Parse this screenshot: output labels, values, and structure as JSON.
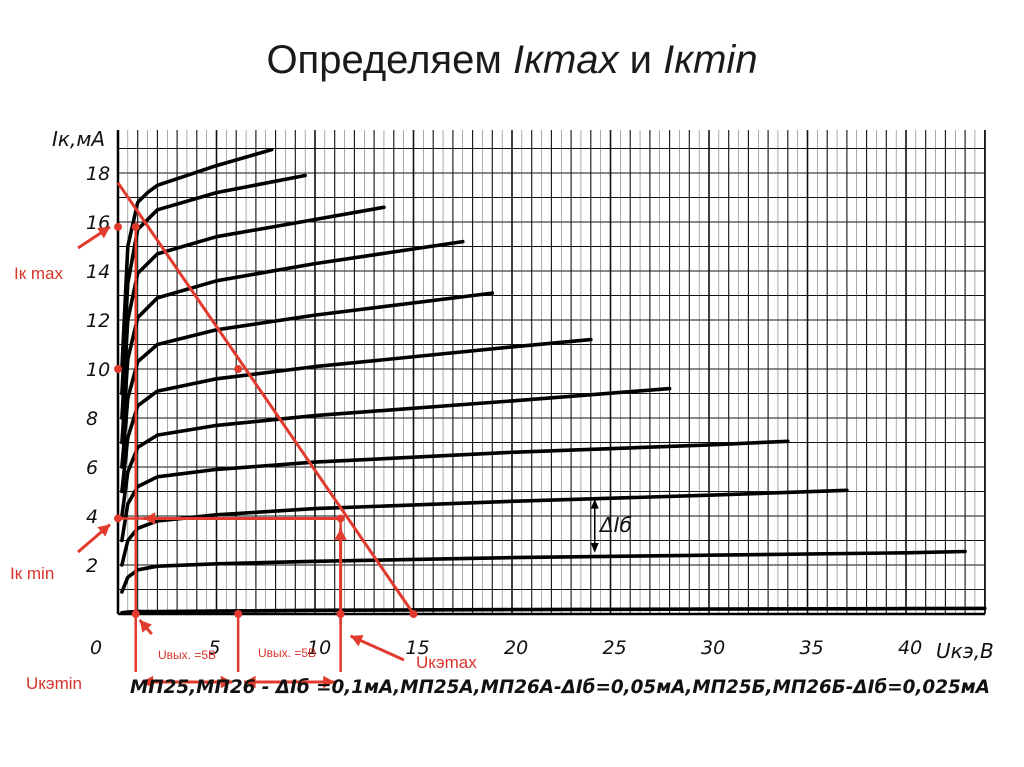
{
  "title": {
    "prefix": "Определяем ",
    "kmax": "Iкmax",
    "and": " и ",
    "kmin": "Iкmin"
  },
  "chart_data": {
    "type": "line",
    "ylabel": "Iк,мА",
    "xlabel": "Uкэ,В",
    "xlim": [
      0,
      44
    ],
    "ylim": [
      0,
      20
    ],
    "x_ticks": [
      "0",
      "5",
      "10",
      "15",
      "20",
      "25",
      "30",
      "35",
      "40"
    ],
    "y_ticks": [
      "2",
      "4",
      "6",
      "8",
      "10",
      "12",
      "14",
      "16",
      "18"
    ],
    "series": [
      {
        "x": [
          0.2,
          0.5,
          1,
          2,
          5,
          10,
          20,
          30,
          40,
          44
        ],
        "y": [
          0.05,
          0.08,
          0.1,
          0.1,
          0.12,
          0.15,
          0.18,
          0.2,
          0.22,
          0.23
        ]
      },
      {
        "x": [
          0.2,
          0.5,
          1,
          2,
          5,
          10,
          20,
          30,
          40,
          43
        ],
        "y": [
          0.9,
          1.5,
          1.8,
          1.95,
          2.05,
          2.15,
          2.3,
          2.4,
          2.5,
          2.55
        ]
      },
      {
        "x": [
          0.2,
          0.5,
          1,
          2,
          5,
          10,
          20,
          30,
          37
        ],
        "y": [
          2,
          3,
          3.5,
          3.8,
          4.05,
          4.3,
          4.6,
          4.85,
          5.05
        ]
      },
      {
        "x": [
          0.2,
          0.5,
          1,
          2,
          5,
          10,
          20,
          30,
          34
        ],
        "y": [
          3,
          4.5,
          5.2,
          5.6,
          5.9,
          6.2,
          6.6,
          6.9,
          7.05
        ]
      },
      {
        "x": [
          0.2,
          0.5,
          1,
          2,
          5,
          10,
          20,
          28
        ],
        "y": [
          4,
          5.8,
          6.8,
          7.3,
          7.7,
          8.1,
          8.7,
          9.2
        ]
      },
      {
        "x": [
          0.2,
          0.5,
          1,
          2,
          5,
          10,
          20,
          24
        ],
        "y": [
          5,
          7.2,
          8.5,
          9.1,
          9.6,
          10.1,
          10.9,
          11.2
        ]
      },
      {
        "x": [
          0.2,
          0.5,
          1,
          2,
          5,
          10,
          19
        ],
        "y": [
          6,
          8.8,
          10.3,
          11,
          11.6,
          12.2,
          13.1
        ]
      },
      {
        "x": [
          0.2,
          0.5,
          1,
          2,
          5,
          10,
          17.5
        ],
        "y": [
          7,
          10.4,
          12.1,
          12.9,
          13.6,
          14.3,
          15.2
        ]
      },
      {
        "x": [
          0.2,
          0.5,
          1,
          2,
          5,
          10,
          13.5
        ],
        "y": [
          8,
          12,
          13.9,
          14.7,
          15.4,
          16.1,
          16.6
        ]
      },
      {
        "x": [
          0.2,
          0.5,
          1,
          2,
          5,
          9.5
        ],
        "y": [
          9,
          13.5,
          15.7,
          16.5,
          17.2,
          17.9
        ]
      },
      {
        "x": [
          0.2,
          0.5,
          1,
          1.5,
          2,
          5,
          7.8
        ],
        "y": [
          10,
          15,
          16.8,
          17.2,
          17.5,
          18.3,
          18.95
        ]
      }
    ],
    "load_line": {
      "x": [
        0,
        15
      ],
      "y": [
        17.6,
        0
      ]
    },
    "annotations": {
      "ik_max_label": "Iк max",
      "ik_min_label": "Iк min",
      "ukemin_label": "Uкэmin",
      "ukemax_label": "Uкэmax",
      "uout1_label": "Uвых. =5В",
      "uout2_label": "Uвых. =5В",
      "delta_ib_label": "ΔIб"
    },
    "caption": "МП25,МП26 - ΔIб =0,1мА,МП25А,МП26А-ΔIб=0,05мА,МП25Б,МП26Б-ΔIб=0,025мА"
  }
}
